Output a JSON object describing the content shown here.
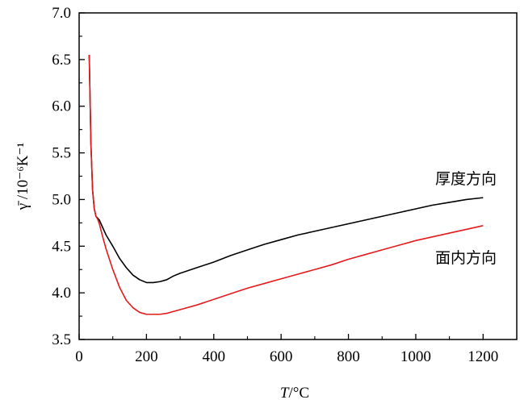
{
  "chart_data": {
    "type": "line",
    "title": "",
    "xlabel": {
      "italic": "T",
      "rest": "/°C"
    },
    "ylabel": "γ̄ /10⁻⁶K⁻¹",
    "xlim": [
      0,
      1300
    ],
    "ylim": [
      3.5,
      7.0
    ],
    "xticks": [
      0,
      200,
      400,
      600,
      800,
      1000,
      1200
    ],
    "yticks": [
      "3.5",
      "4.0",
      "4.5",
      "5.0",
      "5.5",
      "6.0",
      "6.5",
      "7.0"
    ],
    "series": [
      {
        "name": "厚度方向",
        "color": "#000000",
        "x": [
          30,
          35,
          40,
          45,
          50,
          55,
          60,
          70,
          80,
          100,
          120,
          140,
          160,
          180,
          200,
          220,
          240,
          260,
          280,
          300,
          350,
          400,
          450,
          500,
          550,
          600,
          650,
          700,
          750,
          800,
          850,
          900,
          950,
          1000,
          1050,
          1100,
          1150,
          1200
        ],
        "values": [
          6.55,
          5.6,
          5.1,
          4.9,
          4.82,
          4.8,
          4.78,
          4.7,
          4.62,
          4.5,
          4.37,
          4.27,
          4.19,
          4.14,
          4.11,
          4.11,
          4.12,
          4.14,
          4.18,
          4.21,
          4.27,
          4.33,
          4.4,
          4.46,
          4.52,
          4.57,
          4.62,
          4.66,
          4.7,
          4.74,
          4.78,
          4.82,
          4.86,
          4.9,
          4.94,
          4.97,
          5.0,
          5.02
        ]
      },
      {
        "name": "面内方向",
        "color": "#e41a1c",
        "x": [
          30,
          35,
          40,
          45,
          50,
          55,
          60,
          70,
          80,
          100,
          120,
          140,
          160,
          180,
          200,
          220,
          240,
          260,
          280,
          300,
          350,
          400,
          450,
          500,
          550,
          600,
          650,
          700,
          750,
          800,
          850,
          900,
          950,
          1000,
          1050,
          1100,
          1150,
          1200
        ],
        "values": [
          6.55,
          5.6,
          5.1,
          4.9,
          4.82,
          4.79,
          4.74,
          4.6,
          4.47,
          4.25,
          4.06,
          3.92,
          3.84,
          3.79,
          3.77,
          3.77,
          3.77,
          3.78,
          3.8,
          3.82,
          3.87,
          3.93,
          3.99,
          4.05,
          4.1,
          4.15,
          4.2,
          4.25,
          4.3,
          4.36,
          4.41,
          4.46,
          4.51,
          4.56,
          4.6,
          4.64,
          4.68,
          4.72
        ]
      }
    ]
  }
}
